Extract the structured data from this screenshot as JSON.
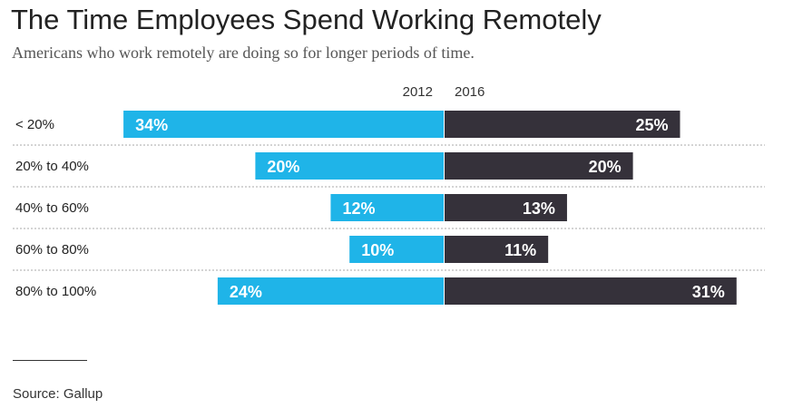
{
  "title": "The Time Employees Spend Working Remotely",
  "subtitle": "Americans who work remotely are doing so for longer periods of time.",
  "source": "Source: Gallup",
  "chart_data": {
    "type": "bar",
    "orientation": "horizontal-diverging",
    "categories": [
      "< 20%",
      "20% to 40%",
      "40% to 60%",
      "60% to 80%",
      "80% to 100%"
    ],
    "series": [
      {
        "name": "2012",
        "values": [
          34,
          20,
          12,
          10,
          24
        ],
        "labels": [
          "34%",
          "20%",
          "12%",
          "10%",
          "24%"
        ],
        "color": "#1fb4e8"
      },
      {
        "name": "2016",
        "values": [
          25,
          20,
          13,
          11,
          31
        ],
        "labels": [
          "25%",
          "20%",
          "13%",
          "11%",
          "31%"
        ],
        "color": "#35313a"
      }
    ],
    "unit": "%",
    "grid": false
  }
}
